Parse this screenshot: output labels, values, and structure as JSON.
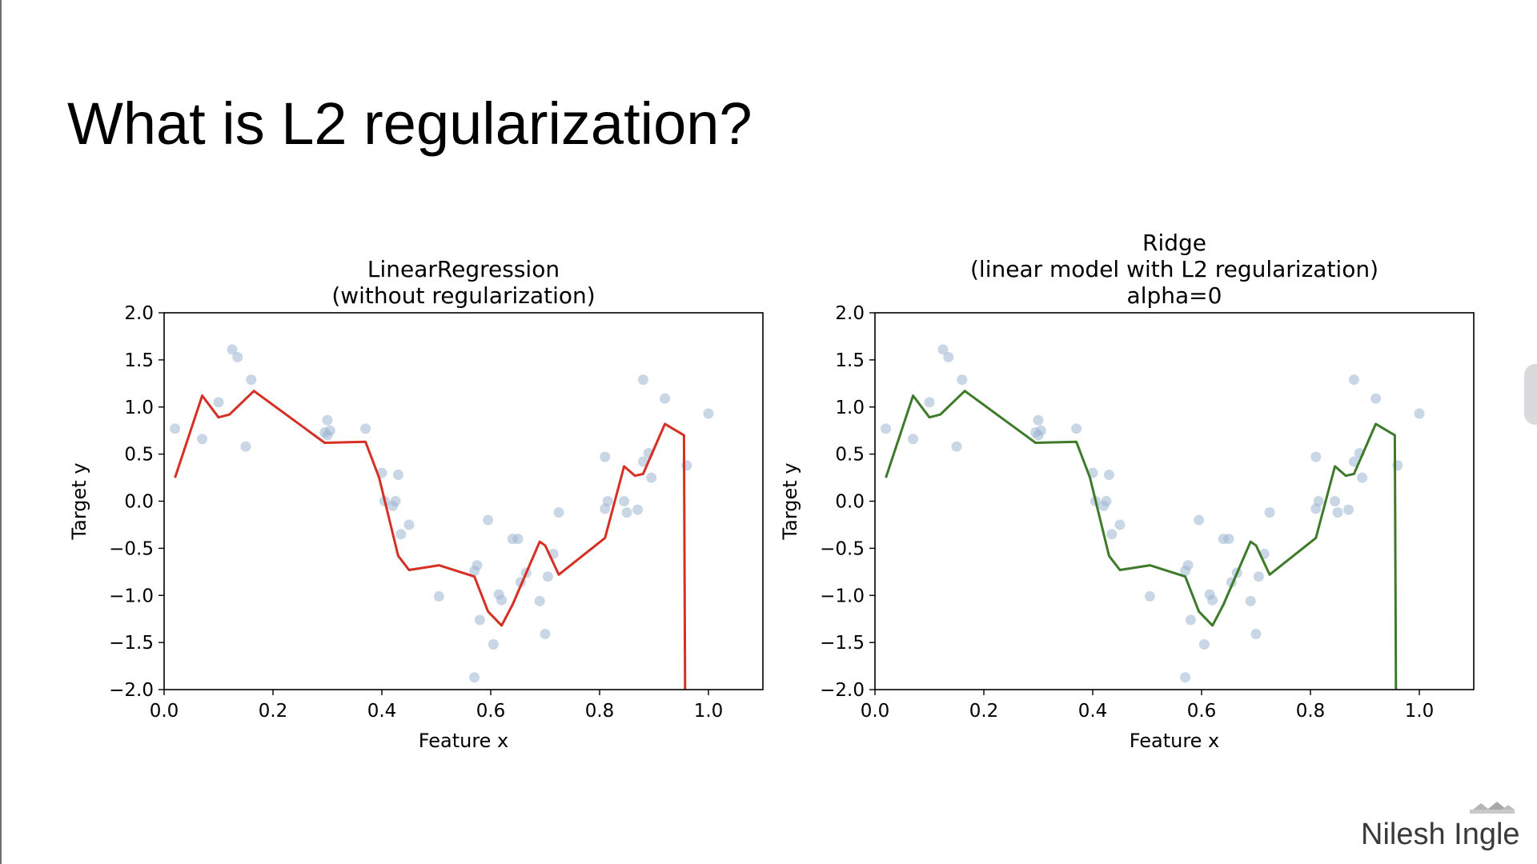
{
  "slide": {
    "title": "What is L2 regularization?",
    "author": "Nilesh Ingle"
  },
  "chart_data": [
    {
      "type": "scatter+line",
      "title_lines": [
        "LinearRegression",
        "(without regularization)"
      ],
      "xlabel": "Feature x",
      "ylabel": "Target y",
      "xlim": [
        0.0,
        1.1
      ],
      "ylim": [
        -2.0,
        2.0
      ],
      "xticks": [
        0.0,
        0.2,
        0.4,
        0.6,
        0.8,
        1.0
      ],
      "xtick_labels": [
        "0.0",
        "0.2",
        "0.4",
        "0.6",
        "0.8",
        "1.0"
      ],
      "yticks": [
        2.0,
        1.5,
        1.0,
        0.5,
        0.0,
        -0.5,
        -1.0,
        -1.5,
        -2.0
      ],
      "ytick_labels": [
        "2.0",
        "1.5",
        "1.0",
        "0.5",
        "0.0",
        "−0.5",
        "−1.0",
        "−1.5",
        "−2.0"
      ],
      "grid": false,
      "line_color": "#d62f24",
      "point_color": "#9db4d0",
      "points": [
        [
          0.02,
          0.77
        ],
        [
          0.07,
          0.66
        ],
        [
          0.1,
          1.05
        ],
        [
          0.125,
          1.61
        ],
        [
          0.135,
          1.53
        ],
        [
          0.15,
          0.58
        ],
        [
          0.16,
          1.29
        ],
        [
          0.295,
          0.73
        ],
        [
          0.3,
          0.7
        ],
        [
          0.3,
          0.86
        ],
        [
          0.305,
          0.75
        ],
        [
          0.37,
          0.77
        ],
        [
          0.4,
          0.3
        ],
        [
          0.405,
          0.0
        ],
        [
          0.42,
          -0.05
        ],
        [
          0.425,
          0.0
        ],
        [
          0.43,
          0.28
        ],
        [
          0.435,
          -0.35
        ],
        [
          0.45,
          -0.25
        ],
        [
          0.505,
          -1.01
        ],
        [
          0.57,
          -1.87
        ],
        [
          0.57,
          -0.74
        ],
        [
          0.575,
          -0.68
        ],
        [
          0.58,
          -1.26
        ],
        [
          0.595,
          -0.2
        ],
        [
          0.605,
          -1.52
        ],
        [
          0.615,
          -0.99
        ],
        [
          0.62,
          -1.05
        ],
        [
          0.64,
          -0.4
        ],
        [
          0.65,
          -0.4
        ],
        [
          0.655,
          -0.86
        ],
        [
          0.665,
          -0.76
        ],
        [
          0.69,
          -1.06
        ],
        [
          0.7,
          -1.41
        ],
        [
          0.705,
          -0.8
        ],
        [
          0.715,
          -0.56
        ],
        [
          0.725,
          -0.12
        ],
        [
          0.81,
          0.47
        ],
        [
          0.81,
          -0.08
        ],
        [
          0.815,
          0.0
        ],
        [
          0.845,
          0.0
        ],
        [
          0.85,
          -0.12
        ],
        [
          0.87,
          -0.09
        ],
        [
          0.88,
          1.29
        ],
        [
          0.88,
          0.42
        ],
        [
          0.89,
          0.51
        ],
        [
          0.895,
          0.25
        ],
        [
          0.92,
          1.09
        ],
        [
          0.96,
          0.38
        ],
        [
          1.0,
          0.93
        ]
      ],
      "line": [
        [
          0.02,
          0.25
        ],
        [
          0.07,
          1.12
        ],
        [
          0.1,
          0.89
        ],
        [
          0.12,
          0.92
        ],
        [
          0.165,
          1.17
        ],
        [
          0.295,
          0.62
        ],
        [
          0.37,
          0.63
        ],
        [
          0.395,
          0.25
        ],
        [
          0.43,
          -0.58
        ],
        [
          0.45,
          -0.73
        ],
        [
          0.505,
          -0.68
        ],
        [
          0.57,
          -0.8
        ],
        [
          0.595,
          -1.17
        ],
        [
          0.62,
          -1.32
        ],
        [
          0.64,
          -1.1
        ],
        [
          0.69,
          -0.43
        ],
        [
          0.7,
          -0.47
        ],
        [
          0.725,
          -0.78
        ],
        [
          0.81,
          -0.39
        ],
        [
          0.845,
          0.37
        ],
        [
          0.865,
          0.27
        ],
        [
          0.88,
          0.29
        ],
        [
          0.92,
          0.82
        ],
        [
          0.955,
          0.7
        ],
        [
          0.957,
          -2.0
        ]
      ]
    },
    {
      "type": "scatter+line",
      "title_lines": [
        "Ridge",
        "(linear model with L2 regularization)",
        "alpha=0"
      ],
      "xlabel": "Feature x",
      "ylabel": "Target y",
      "xlim": [
        0.0,
        1.1
      ],
      "ylim": [
        -2.0,
        2.0
      ],
      "xticks": [
        0.0,
        0.2,
        0.4,
        0.6,
        0.8,
        1.0
      ],
      "xtick_labels": [
        "0.0",
        "0.2",
        "0.4",
        "0.6",
        "0.8",
        "1.0"
      ],
      "yticks": [
        2.0,
        1.5,
        1.0,
        0.5,
        0.0,
        -0.5,
        -1.0,
        -1.5,
        -2.0
      ],
      "ytick_labels": [
        "2.0",
        "1.5",
        "1.0",
        "0.5",
        "0.0",
        "−0.5",
        "−1.0",
        "−1.5",
        "−2.0"
      ],
      "grid": false,
      "line_color": "#3d7a2a",
      "point_color": "#9db4d0",
      "points": [
        [
          0.02,
          0.77
        ],
        [
          0.07,
          0.66
        ],
        [
          0.1,
          1.05
        ],
        [
          0.125,
          1.61
        ],
        [
          0.135,
          1.53
        ],
        [
          0.15,
          0.58
        ],
        [
          0.16,
          1.29
        ],
        [
          0.295,
          0.73
        ],
        [
          0.3,
          0.7
        ],
        [
          0.3,
          0.86
        ],
        [
          0.305,
          0.75
        ],
        [
          0.37,
          0.77
        ],
        [
          0.4,
          0.3
        ],
        [
          0.405,
          0.0
        ],
        [
          0.42,
          -0.05
        ],
        [
          0.425,
          0.0
        ],
        [
          0.43,
          0.28
        ],
        [
          0.435,
          -0.35
        ],
        [
          0.45,
          -0.25
        ],
        [
          0.505,
          -1.01
        ],
        [
          0.57,
          -1.87
        ],
        [
          0.57,
          -0.74
        ],
        [
          0.575,
          -0.68
        ],
        [
          0.58,
          -1.26
        ],
        [
          0.595,
          -0.2
        ],
        [
          0.605,
          -1.52
        ],
        [
          0.615,
          -0.99
        ],
        [
          0.62,
          -1.05
        ],
        [
          0.64,
          -0.4
        ],
        [
          0.65,
          -0.4
        ],
        [
          0.655,
          -0.86
        ],
        [
          0.665,
          -0.76
        ],
        [
          0.69,
          -1.06
        ],
        [
          0.7,
          -1.41
        ],
        [
          0.705,
          -0.8
        ],
        [
          0.715,
          -0.56
        ],
        [
          0.725,
          -0.12
        ],
        [
          0.81,
          0.47
        ],
        [
          0.81,
          -0.08
        ],
        [
          0.815,
          0.0
        ],
        [
          0.845,
          0.0
        ],
        [
          0.85,
          -0.12
        ],
        [
          0.87,
          -0.09
        ],
        [
          0.88,
          1.29
        ],
        [
          0.88,
          0.42
        ],
        [
          0.89,
          0.51
        ],
        [
          0.895,
          0.25
        ],
        [
          0.92,
          1.09
        ],
        [
          0.96,
          0.38
        ],
        [
          1.0,
          0.93
        ]
      ],
      "line": [
        [
          0.02,
          0.25
        ],
        [
          0.07,
          1.12
        ],
        [
          0.1,
          0.89
        ],
        [
          0.12,
          0.92
        ],
        [
          0.165,
          1.17
        ],
        [
          0.295,
          0.62
        ],
        [
          0.37,
          0.63
        ],
        [
          0.395,
          0.25
        ],
        [
          0.43,
          -0.58
        ],
        [
          0.45,
          -0.73
        ],
        [
          0.505,
          -0.68
        ],
        [
          0.57,
          -0.8
        ],
        [
          0.595,
          -1.17
        ],
        [
          0.62,
          -1.32
        ],
        [
          0.64,
          -1.1
        ],
        [
          0.69,
          -0.43
        ],
        [
          0.7,
          -0.47
        ],
        [
          0.725,
          -0.78
        ],
        [
          0.81,
          -0.39
        ],
        [
          0.845,
          0.37
        ],
        [
          0.865,
          0.27
        ],
        [
          0.88,
          0.29
        ],
        [
          0.92,
          0.82
        ],
        [
          0.955,
          0.7
        ],
        [
          0.957,
          -2.0
        ]
      ]
    }
  ]
}
